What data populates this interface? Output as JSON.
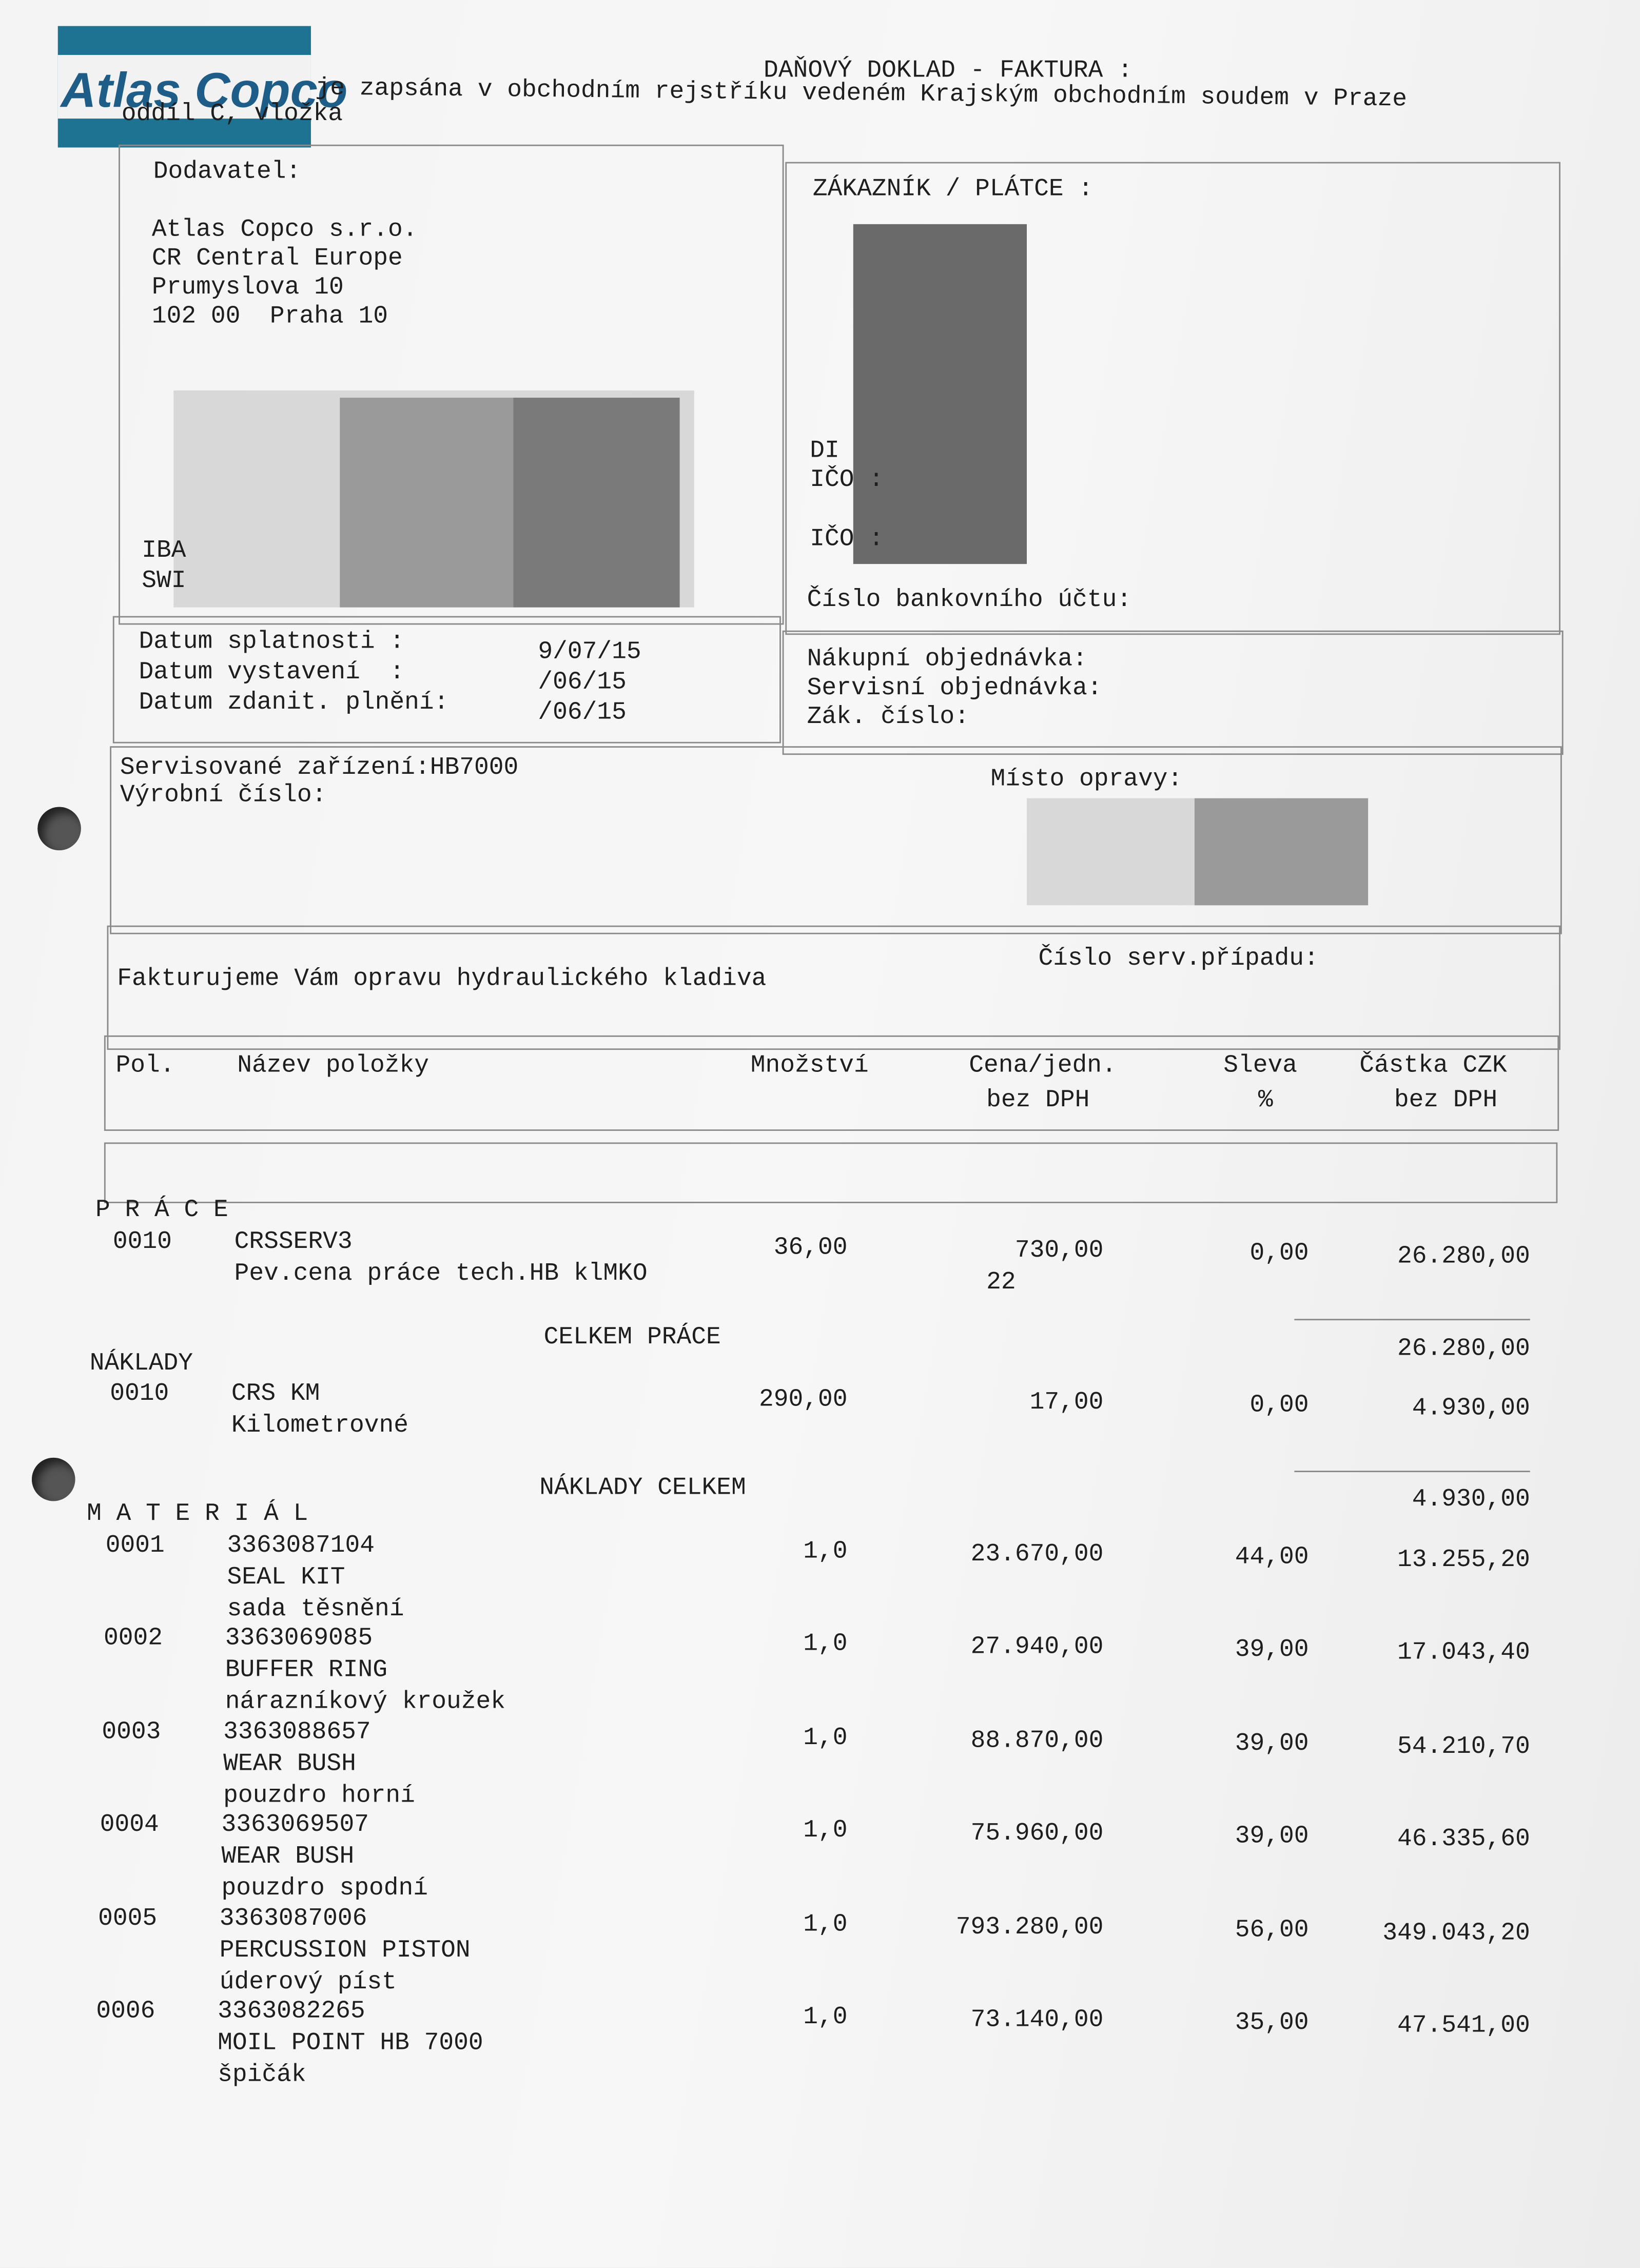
{
  "header": {
    "logo": "Atlas Copco",
    "title": "DAŇOVÝ DOKLAD - FAKTURA :",
    "registry": "je zapsána v obchodním rejstříku vedeném Krajským obchodním soudem v Praze",
    "registry_section": "oddíl C, vložka"
  },
  "supplier": {
    "label": "Dodavatel:",
    "lines": [
      "Atlas Copco s.r.o.",
      "CR Central Europe",
      "Prumyslova 10",
      "102 00  Praha 10"
    ],
    "bank_lines": [
      "IBA",
      "SWI"
    ]
  },
  "customer": {
    "label": "ZÁKAZNÍK / PLÁTCE :",
    "lines": [
      "DI",
      "IČO :",
      "IČO :"
    ],
    "bank_account": "Číslo bankovního účtu:"
  },
  "dates": [
    {
      "label": "Datum splatnosti :",
      "value": "9/07/15"
    },
    {
      "label": "Datum vystavení  :",
      "value": "/06/15"
    },
    {
      "label": "Datum zdanit. plnění:",
      "value": "/06/15"
    }
  ],
  "orders": [
    "Nákupní objednávka:",
    "Servisní objednávka:",
    "Zák. číslo:"
  ],
  "equipment": {
    "device": "Servisované zařízení:HB7000",
    "serial": "Výrobní číslo:",
    "repair_place": "Místo opravy:"
  },
  "description": {
    "text": "Fakturujeme Vám opravu hydraulického kladiva",
    "case_number": "Číslo serv.případu:"
  },
  "table": {
    "columns": [
      [
        "Pol."
      ],
      [
        "Název položky"
      ],
      [
        "Množství"
      ],
      [
        "Cena/jedn.",
        "bez DPH"
      ],
      [
        "Sleva",
        "%"
      ],
      [
        "Částka CZK",
        "bez DPH"
      ]
    ],
    "sections": [
      {
        "title": "P R Á C E",
        "items": [
          {
            "pos": "0010",
            "lines": [
              "CRSSERV3",
              "Pev.cena práce tech.HB klMKO"
            ],
            "qty": "36,00",
            "price": "730,00",
            "note": "22",
            "discount": "0,00",
            "amount": "26.280,00"
          }
        ],
        "total_label": "CELKEM PRÁCE",
        "total": "26.280,00"
      },
      {
        "title": "NÁKLADY",
        "items": [
          {
            "pos": "0010",
            "lines": [
              "CRS KM",
              "Kilometrovné"
            ],
            "qty": "290,00",
            "price": "17,00",
            "discount": "0,00",
            "amount": "4.930,00"
          }
        ],
        "total_label": "NÁKLADY CELKEM",
        "total": "4.930,00"
      },
      {
        "title": "M A T E R I Á L",
        "items": [
          {
            "pos": "0001",
            "lines": [
              "3363087104",
              "SEAL KIT",
              "sada těsnění"
            ],
            "qty": "1,0",
            "price": "23.670,00",
            "discount": "44,00",
            "amount": "13.255,20"
          },
          {
            "pos": "0002",
            "lines": [
              "3363069085",
              "BUFFER RING",
              "nárazníkový kroužek"
            ],
            "qty": "1,0",
            "price": "27.940,00",
            "discount": "39,00",
            "amount": "17.043,40"
          },
          {
            "pos": "0003",
            "lines": [
              "3363088657",
              "WEAR BUSH",
              "pouzdro horní"
            ],
            "qty": "1,0",
            "price": "88.870,00",
            "discount": "39,00",
            "amount": "54.210,70"
          },
          {
            "pos": "0004",
            "lines": [
              "3363069507",
              "WEAR BUSH",
              "pouzdro spodní"
            ],
            "qty": "1,0",
            "price": "75.960,00",
            "discount": "39,00",
            "amount": "46.335,60"
          },
          {
            "pos": "0005",
            "lines": [
              "3363087006",
              "PERCUSSION PISTON",
              "úderový píst"
            ],
            "qty": "1,0",
            "price": "793.280,00",
            "discount": "56,00",
            "amount": "349.043,20"
          },
          {
            "pos": "0006",
            "lines": [
              "3363082265",
              "MOIL POINT HB 7000",
              "špičák"
            ],
            "qty": "1,0",
            "price": "73.140,00",
            "discount": "35,00",
            "amount": "47.541,00"
          }
        ]
      }
    ]
  }
}
